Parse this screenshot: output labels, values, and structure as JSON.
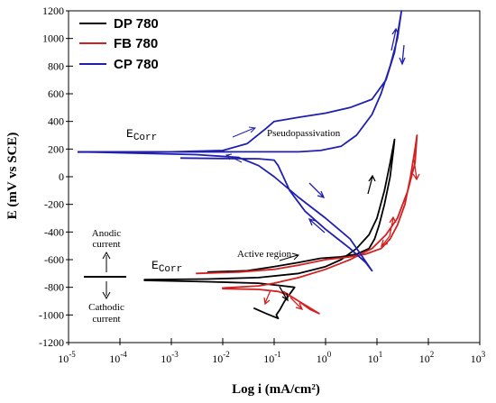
{
  "chart_data": {
    "type": "line",
    "xlabel": "Log i (mA/cm²)",
    "ylabel": "E (mV vs SCE)",
    "xscale": "log",
    "xlim": [
      1e-05,
      1000
    ],
    "ylim": [
      -1200,
      1200
    ],
    "x_ticks": [
      {
        "value": 1e-05,
        "base": "10",
        "exp": "-5"
      },
      {
        "value": 0.0001,
        "base": "10",
        "exp": "-4"
      },
      {
        "value": 0.001,
        "base": "10",
        "exp": "-3"
      },
      {
        "value": 0.01,
        "base": "10",
        "exp": "-2"
      },
      {
        "value": 0.1,
        "base": "10",
        "exp": "-1"
      },
      {
        "value": 1,
        "base": "10",
        "exp": "0"
      },
      {
        "value": 10,
        "base": "10",
        "exp": "1"
      },
      {
        "value": 100,
        "base": "10",
        "exp": "2"
      },
      {
        "value": 1000,
        "base": "10",
        "exp": "3"
      }
    ],
    "y_ticks": [
      -1200,
      -1000,
      -800,
      -600,
      -400,
      -200,
      0,
      200,
      400,
      600,
      800,
      1000,
      1200
    ],
    "legend_position": "top-left",
    "series": [
      {
        "name": "DP 780",
        "color": "#000000",
        "points": [
          [
            0.04,
            -950
          ],
          [
            0.07,
            -990
          ],
          [
            0.12,
            -1025
          ],
          [
            0.11,
            -1000
          ],
          [
            0.13,
            -960
          ],
          [
            0.16,
            -900
          ],
          [
            0.2,
            -850
          ],
          [
            0.25,
            -800
          ],
          [
            0.15,
            -790
          ],
          [
            0.05,
            -770
          ],
          [
            0.005,
            -760
          ],
          [
            0.0003,
            -750
          ],
          [
            0.0003,
            -745
          ],
          [
            0.005,
            -740
          ],
          [
            0.05,
            -730
          ],
          [
            0.3,
            -700
          ],
          [
            1,
            -650
          ],
          [
            2,
            -600
          ],
          [
            4,
            -520
          ],
          [
            7,
            -420
          ],
          [
            10,
            -300
          ],
          [
            14,
            -100
          ],
          [
            18,
            100
          ],
          [
            22,
            270
          ],
          [
            21,
            200
          ],
          [
            18,
            0
          ],
          [
            14,
            -200
          ],
          [
            11,
            -350
          ],
          [
            9,
            -450
          ],
          [
            7,
            -520
          ],
          [
            4,
            -560
          ],
          [
            2,
            -580
          ],
          [
            0.8,
            -590
          ],
          [
            0.3,
            -620
          ],
          [
            0.1,
            -650
          ],
          [
            0.03,
            -680
          ],
          [
            0.005,
            -690
          ]
        ]
      },
      {
        "name": "FB 780",
        "color": "#d42020",
        "points": [
          [
            0.15,
            -830
          ],
          [
            0.3,
            -900
          ],
          [
            0.5,
            -960
          ],
          [
            0.75,
            -990
          ],
          [
            0.5,
            -950
          ],
          [
            0.3,
            -900
          ],
          [
            0.2,
            -860
          ],
          [
            0.12,
            -830
          ],
          [
            0.05,
            -815
          ],
          [
            0.01,
            -810
          ],
          [
            0.01,
            -805
          ],
          [
            0.05,
            -790
          ],
          [
            0.1,
            -770
          ],
          [
            0.3,
            -730
          ],
          [
            1,
            -670
          ],
          [
            3,
            -600
          ],
          [
            8,
            -520
          ],
          [
            15,
            -420
          ],
          [
            25,
            -300
          ],
          [
            40,
            -100
          ],
          [
            55,
            100
          ],
          [
            60,
            300
          ],
          [
            55,
            200
          ],
          [
            45,
            0
          ],
          [
            35,
            -200
          ],
          [
            25,
            -350
          ],
          [
            18,
            -450
          ],
          [
            12,
            -520
          ],
          [
            6,
            -560
          ],
          [
            3,
            -580
          ],
          [
            1,
            -600
          ],
          [
            0.3,
            -640
          ],
          [
            0.1,
            -670
          ],
          [
            0.02,
            -690
          ],
          [
            0.003,
            -700
          ]
        ]
      },
      {
        "name": "CP 780",
        "color": "#2020b0",
        "points": [
          [
            1.5e-05,
            180
          ],
          [
            0.001,
            180
          ],
          [
            0.01,
            190
          ],
          [
            0.03,
            240
          ],
          [
            0.07,
            350
          ],
          [
            0.1,
            400
          ],
          [
            0.3,
            430
          ],
          [
            1,
            460
          ],
          [
            3,
            500
          ],
          [
            8,
            560
          ],
          [
            15,
            700
          ],
          [
            22,
            900
          ],
          [
            30,
            1200
          ],
          [
            25,
            1000
          ],
          [
            18,
            800
          ],
          [
            12,
            600
          ],
          [
            8,
            450
          ],
          [
            4,
            300
          ],
          [
            2,
            220
          ],
          [
            0.8,
            190
          ],
          [
            0.3,
            180
          ],
          [
            0.02,
            180
          ],
          [
            1.5e-05,
            178
          ]
        ]
      },
      {
        "name": "",
        "color": "#2020b0",
        "points": [
          [
            1.5e-05,
            180
          ],
          [
            0.003,
            160
          ],
          [
            0.02,
            140
          ],
          [
            0.05,
            80
          ],
          [
            0.1,
            0
          ],
          [
            0.3,
            -150
          ],
          [
            1,
            -300
          ],
          [
            3,
            -450
          ],
          [
            8,
            -680
          ],
          [
            6,
            -620
          ],
          [
            3,
            -520
          ],
          [
            1,
            -380
          ],
          [
            0.4,
            -250
          ],
          [
            0.2,
            -100
          ],
          [
            0.12,
            80
          ],
          [
            0.1,
            120
          ],
          [
            0.05,
            130
          ],
          [
            0.01,
            132
          ],
          [
            0.0015,
            135
          ]
        ]
      }
    ],
    "annotations": {
      "ecorr_top": "E",
      "ecorr_top_sub": "Corr",
      "ecorr_bottom": "E",
      "ecorr_bottom_sub": "Corr",
      "pseudopassivation": "Pseudopassivation",
      "active_region": "Active region",
      "anodic_1": "Anodic",
      "anodic_2": "current",
      "cathodic_1": "Cathodic",
      "cathodic_2": "current"
    }
  }
}
